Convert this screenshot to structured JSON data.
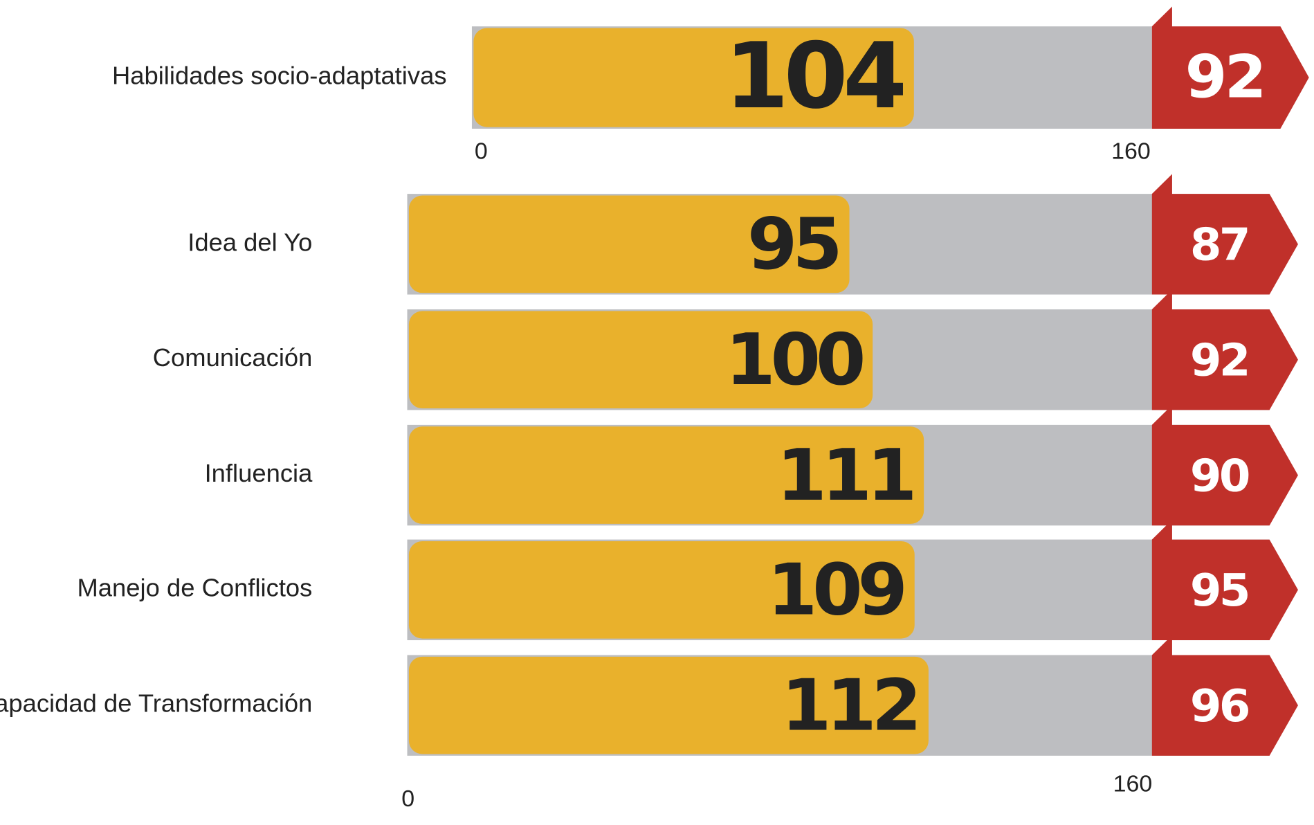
{
  "chart_data": [
    {
      "type": "bar",
      "categories": [
        "Habilidades socio-adaptativas"
      ],
      "values": [
        104
      ],
      "flag_values": [
        92
      ],
      "color": "#e9b12c",
      "flag_color": "#c0302a",
      "track_color": "#bdbec1",
      "xlim": [
        0,
        160
      ],
      "xticks": [
        0,
        160
      ]
    },
    {
      "type": "bar",
      "categories": [
        "Idea del Yo",
        "Comunicación",
        "Influencia",
        "Manejo de Conflictos",
        "Capacidad de Transformación"
      ],
      "values": [
        95,
        100,
        111,
        109,
        112
      ],
      "flag_values": [
        87,
        92,
        90,
        95,
        96
      ],
      "color": "#e9b12c",
      "flag_color": "#c0302a",
      "track_color": "#bdbec1",
      "xlim": [
        0,
        160
      ],
      "xticks": [
        0,
        160
      ]
    }
  ]
}
